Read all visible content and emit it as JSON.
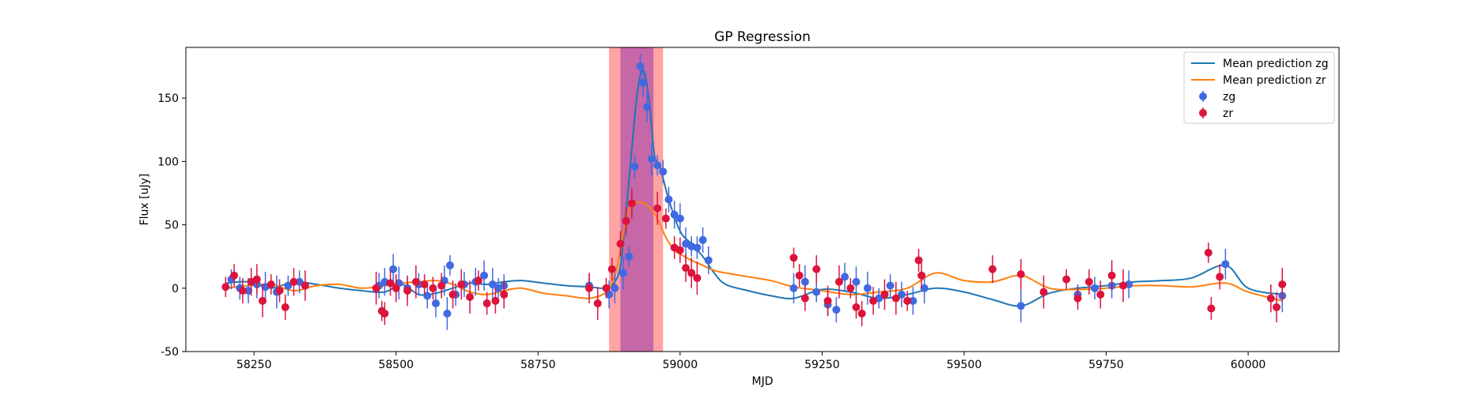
{
  "chart_data": {
    "type": "scatter",
    "title": "GP Regression",
    "xlabel": "MJD",
    "ylabel": "Flux [uJy]",
    "xlim": [
      58130,
      60160
    ],
    "ylim": [
      -50,
      190
    ],
    "xticks": [
      58250,
      58500,
      58750,
      59000,
      59250,
      59500,
      59750,
      60000
    ],
    "yticks": [
      -50,
      0,
      50,
      100,
      150
    ],
    "grid": false,
    "legend_position": "top-right",
    "shaded_regions": [
      {
        "x0": 58875,
        "x1": 58970,
        "color": "#ff9999"
      },
      {
        "x0": 58895,
        "x1": 58953,
        "color": "#c060a8"
      }
    ],
    "lines": [
      {
        "name": "Mean prediction zg",
        "color": "#1f77b4",
        "x": [
          58200,
          58240,
          58280,
          58320,
          58360,
          58400,
          58440,
          58480,
          58510,
          58540,
          58570,
          58600,
          58630,
          58660,
          58690,
          58720,
          58760,
          58800,
          58840,
          58870,
          58885,
          58895,
          58905,
          58915,
          58925,
          58935,
          58945,
          58955,
          58965,
          58980,
          59000,
          59020,
          59040,
          59060,
          59080,
          59120,
          59160,
          59200,
          59250,
          59300,
          59350,
          59400,
          59450,
          59500,
          59550,
          59600,
          59650,
          59700,
          59750,
          59800,
          59850,
          59900,
          59960,
          60000,
          60060
        ],
        "y": [
          4,
          5,
          0,
          5,
          3,
          0,
          -2,
          -3,
          3,
          -5,
          -4,
          0,
          4,
          3,
          5,
          6,
          4,
          2,
          1,
          0,
          5,
          18,
          60,
          110,
          155,
          172,
          150,
          105,
          95,
          70,
          45,
          35,
          25,
          12,
          3,
          -2,
          -6,
          -8,
          -1,
          -3,
          -8,
          -5,
          0,
          -3,
          -9,
          -14,
          -4,
          0,
          2,
          5,
          6,
          8,
          18,
          0,
          -5
        ]
      },
      {
        "name": "Mean prediction zr",
        "color": "#ff7f0e",
        "x": [
          58200,
          58240,
          58280,
          58320,
          58360,
          58400,
          58440,
          58480,
          58510,
          58540,
          58570,
          58600,
          58630,
          58660,
          58690,
          58720,
          58760,
          58800,
          58840,
          58870,
          58885,
          58895,
          58905,
          58915,
          58930,
          58945,
          58960,
          58975,
          58990,
          59000,
          59020,
          59040,
          59060,
          59080,
          59120,
          59160,
          59200,
          59250,
          59300,
          59350,
          59400,
          59450,
          59500,
          59550,
          59600,
          59650,
          59700,
          59750,
          59800,
          59850,
          59900,
          59960,
          60000,
          60060
        ],
        "y": [
          0,
          2,
          3,
          -2,
          2,
          3,
          0,
          2,
          4,
          5,
          6,
          3,
          -3,
          -5,
          -2,
          0,
          -4,
          -6,
          -8,
          -3,
          10,
          30,
          55,
          65,
          68,
          64,
          55,
          40,
          30,
          27,
          22,
          18,
          14,
          12,
          9,
          6,
          1,
          -2,
          -5,
          -3,
          0,
          12,
          6,
          5,
          10,
          0,
          -1,
          0,
          2,
          2,
          1,
          4,
          -3,
          -10
        ]
      }
    ],
    "series": [
      {
        "name": "zg",
        "color": "#4169e1",
        "x": [
          58210,
          58225,
          58240,
          58255,
          58270,
          58290,
          58310,
          58330,
          58470,
          58480,
          58495,
          58505,
          58520,
          58540,
          58555,
          58570,
          58585,
          58590,
          58595,
          58605,
          58620,
          58640,
          58655,
          58670,
          58680,
          58690,
          58840,
          58875,
          58885,
          58900,
          58910,
          58920,
          58930,
          58935,
          58942,
          58950,
          58960,
          58970,
          58980,
          58990,
          59000,
          59010,
          59020,
          59030,
          59040,
          59050,
          59200,
          59220,
          59240,
          59260,
          59275,
          59290,
          59310,
          59330,
          59350,
          59370,
          59390,
          59410,
          59430,
          59600,
          59700,
          59730,
          59760,
          59790,
          59960,
          60060
        ],
        "y": [
          7,
          0,
          -2,
          3,
          1,
          -3,
          2,
          5,
          2,
          5,
          15,
          4,
          0,
          3,
          -6,
          -12,
          6,
          -20,
          18,
          -5,
          3,
          5,
          10,
          3,
          0,
          2,
          2,
          -5,
          0,
          12,
          25,
          96,
          175,
          162,
          143,
          102,
          97,
          92,
          70,
          58,
          55,
          35,
          33,
          32,
          38,
          22,
          0,
          5,
          -3,
          -13,
          -17,
          9,
          5,
          0,
          -8,
          2,
          -5,
          -10,
          0,
          -14,
          -5,
          0,
          2,
          3,
          19,
          -6
        ]
      },
      {
        "name": "zr",
        "color": "#dc143c",
        "x": [
          58200,
          58215,
          58230,
          58245,
          58255,
          58265,
          58280,
          58295,
          58305,
          58320,
          58340,
          58465,
          58475,
          58480,
          58490,
          58500,
          58520,
          58535,
          58550,
          58565,
          58580,
          58600,
          58615,
          58630,
          58645,
          58660,
          58675,
          58690,
          58840,
          58855,
          58870,
          58880,
          58895,
          58905,
          58915,
          58960,
          58975,
          58990,
          59000,
          59010,
          59020,
          59030,
          59200,
          59210,
          59220,
          59240,
          59260,
          59280,
          59300,
          59310,
          59320,
          59340,
          59360,
          59380,
          59400,
          59420,
          59425,
          59550,
          59600,
          59640,
          59680,
          59700,
          59720,
          59740,
          59760,
          59780,
          59930,
          59935,
          59950,
          60040,
          60050,
          60060
        ],
        "y": [
          1,
          10,
          -2,
          5,
          7,
          -10,
          3,
          -2,
          -15,
          5,
          2,
          0,
          -18,
          -20,
          4,
          0,
          -2,
          5,
          3,
          0,
          2,
          -5,
          3,
          -7,
          6,
          -12,
          -10,
          -5,
          0,
          -12,
          0,
          15,
          35,
          53,
          67,
          63,
          55,
          32,
          30,
          16,
          12,
          8,
          24,
          10,
          -8,
          15,
          -10,
          5,
          0,
          -15,
          -20,
          -10,
          -5,
          -8,
          -10,
          22,
          10,
          15,
          11,
          -3,
          7,
          -8,
          5,
          -5,
          10,
          2,
          28,
          -16,
          9,
          -8,
          -15,
          3
        ]
      }
    ]
  }
}
